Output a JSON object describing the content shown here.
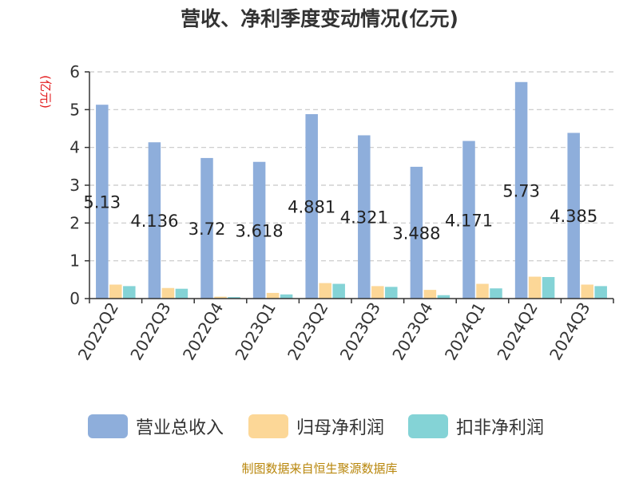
{
  "title": "营收、净利季度变动情况(亿元)",
  "source": "制图数据来自恒生聚源数据库",
  "chart_data": {
    "type": "bar",
    "title": "营收、净利季度变动情况(亿元)",
    "ylabel": "(亿元)",
    "ylim": [
      0,
      6
    ],
    "yticks": [
      "0",
      "1",
      "2",
      "3",
      "4",
      "5",
      "6"
    ],
    "grid": true,
    "legend_position": "bottom",
    "categories": [
      "2022Q2",
      "2022Q3",
      "2022Q4",
      "2023Q1",
      "2023Q2",
      "2023Q3",
      "2023Q4",
      "2024Q1",
      "2024Q2",
      "2024Q3"
    ],
    "series": [
      {
        "name": "营业总收入",
        "color": "#8eaedb",
        "values": [
          5.13,
          4.136,
          3.72,
          3.618,
          4.881,
          4.321,
          3.488,
          4.171,
          5.73,
          4.385
        ],
        "labels": [
          "5.13",
          "4.136",
          "3.72",
          "3.618",
          "4.881",
          "4.321",
          "3.488",
          "4.171",
          "5.73",
          "4.385"
        ]
      },
      {
        "name": "归母净利润",
        "color": "#fcd797",
        "values": [
          0.37,
          0.28,
          0.05,
          0.15,
          0.41,
          0.33,
          0.23,
          0.39,
          0.58,
          0.37
        ]
      },
      {
        "name": "扣非净利润",
        "color": "#84d3d6",
        "values": [
          0.33,
          0.26,
          0.04,
          0.11,
          0.39,
          0.31,
          0.09,
          0.27,
          0.57,
          0.33
        ]
      }
    ]
  }
}
